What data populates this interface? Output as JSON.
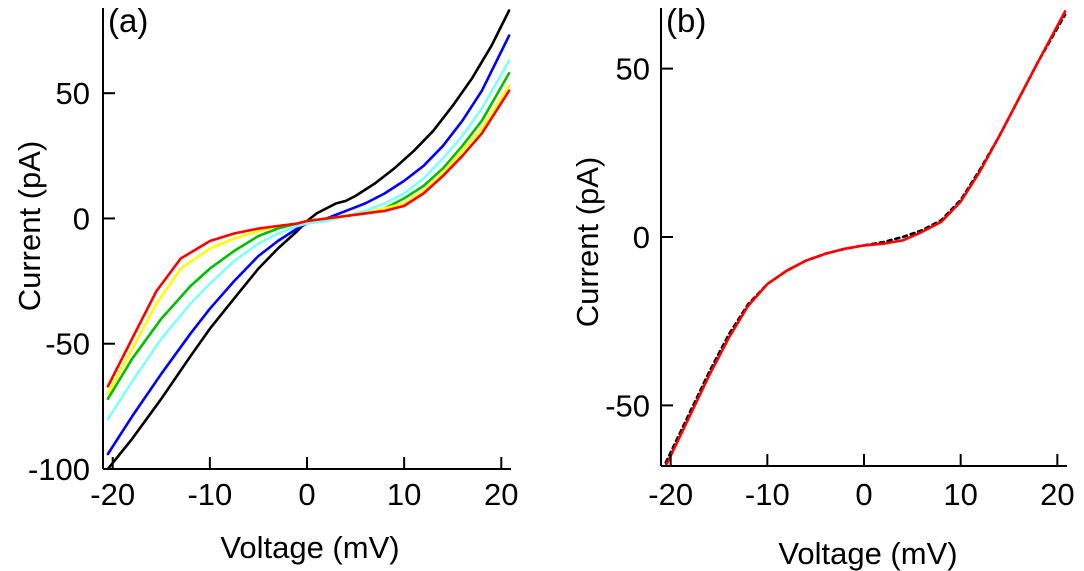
{
  "chart_data": [
    {
      "type": "line",
      "panel_label": "(a)",
      "xlabel": "Voltage (mV)",
      "ylabel": "Current (pA)",
      "xlim": [
        -21,
        21
      ],
      "ylim": [
        -100,
        84
      ],
      "xticks": [
        -20,
        -10,
        0,
        10,
        20
      ],
      "xtick_labels": [
        "-20",
        "-10",
        "0",
        "10",
        "20"
      ],
      "yticks": [
        -100,
        -50,
        0,
        50
      ],
      "ytick_labels": [
        "-100",
        "-50",
        "0",
        "50"
      ],
      "grid": false,
      "legend": "none",
      "series": [
        {
          "color": "#000000",
          "x": [
            -20.5,
            -18,
            -15,
            -12,
            -10,
            -7.5,
            -5,
            -3,
            -1,
            0,
            1,
            2,
            3,
            4,
            5,
            7,
            9,
            11,
            13,
            15,
            17,
            19,
            20.8
          ],
          "y": [
            -100,
            -88,
            -72,
            -55,
            -44,
            -32,
            -20,
            -12,
            -5,
            -1,
            2,
            4,
            6,
            7,
            9,
            14,
            20,
            27,
            35,
            45,
            56,
            69,
            83
          ]
        },
        {
          "color": "#0000ff",
          "x": [
            -20.5,
            -18,
            -15,
            -12,
            -10,
            -7.5,
            -5,
            -3,
            -1,
            0,
            2,
            4,
            6,
            8,
            10,
            12,
            14,
            16,
            18,
            20.8
          ],
          "y": [
            -94,
            -79,
            -62,
            -46,
            -36,
            -25,
            -15,
            -9,
            -4,
            -2,
            0,
            3,
            6,
            10,
            15,
            21,
            29,
            39,
            51,
            73
          ]
        },
        {
          "color": "#7fffff",
          "x": [
            -20.5,
            -18,
            -15,
            -12,
            -10,
            -7.5,
            -5,
            -3,
            -1,
            0,
            2,
            4,
            6,
            8,
            10,
            12,
            14,
            16,
            18,
            20.8
          ],
          "y": [
            -80,
            -65,
            -48,
            -34,
            -26,
            -17,
            -10,
            -6,
            -3,
            -2,
            -1,
            1,
            3,
            6,
            10,
            16,
            24,
            33,
            44,
            63
          ]
        },
        {
          "color": "#00c000",
          "x": [
            -20.5,
            -18,
            -15,
            -12,
            -10,
            -7.5,
            -5,
            -3,
            -1,
            0,
            2,
            4,
            6,
            8,
            10,
            12,
            14,
            16,
            18,
            20.8
          ],
          "y": [
            -72,
            -56,
            -40,
            -27,
            -20,
            -13,
            -7,
            -4,
            -2,
            -1,
            0,
            1,
            2,
            4,
            8,
            13,
            20,
            29,
            39,
            58
          ]
        },
        {
          "color": "#ffff00",
          "x": [
            -20.5,
            -18,
            -15.5,
            -13,
            -10,
            -7.5,
            -5,
            -3,
            -1,
            0,
            2,
            4,
            6,
            8,
            10,
            12,
            14,
            16,
            18,
            20.8
          ],
          "y": [
            -70,
            -52,
            -34,
            -20,
            -12,
            -8,
            -5,
            -3,
            -2,
            -1,
            0,
            1,
            2,
            4,
            6,
            11,
            18,
            27,
            36,
            53
          ]
        },
        {
          "color": "#ff0000",
          "x": [
            -20.5,
            -18,
            -15.5,
            -13,
            -10,
            -7.5,
            -5,
            -3,
            -1,
            0,
            2,
            4,
            6,
            8,
            10,
            12,
            14,
            16,
            18,
            20.8
          ],
          "y": [
            -67,
            -48,
            -29,
            -16,
            -9,
            -6,
            -4,
            -3,
            -2,
            -1,
            0,
            1,
            2,
            3,
            5,
            10,
            17,
            25,
            34,
            51
          ]
        }
      ]
    },
    {
      "type": "line",
      "panel_label": "(b)",
      "xlabel": "Voltage (mV)",
      "ylabel": "Current (pA)",
      "xlim": [
        -21,
        21
      ],
      "ylim": [
        -68,
        68
      ],
      "xticks": [
        -20,
        -10,
        0,
        10,
        20
      ],
      "xtick_labels": [
        "-20",
        "-10",
        "0",
        "10",
        "20"
      ],
      "yticks": [
        -50,
        0,
        50
      ],
      "ytick_labels": [
        "-50",
        "0",
        "50"
      ],
      "grid": false,
      "legend": "none",
      "series": [
        {
          "color": "#000000",
          "dashed": true,
          "x": [
            -20.5,
            -18,
            -16,
            -14,
            -12,
            -10,
            -8,
            -6,
            -4,
            -2,
            0,
            2,
            4,
            6,
            8,
            10,
            12,
            14,
            16,
            18,
            20.8
          ],
          "y": [
            -67,
            -52,
            -40,
            -29,
            -20,
            -14,
            -10,
            -7,
            -5,
            -3.5,
            -2.5,
            -1.5,
            0,
            2,
            5,
            11,
            20,
            30,
            41,
            52,
            66
          ]
        },
        {
          "color": "#ff0000",
          "dashed": false,
          "x": [
            -20.5,
            -18,
            -16,
            -14,
            -12,
            -10,
            -8,
            -6,
            -4,
            -2,
            0,
            2,
            4,
            6,
            8,
            10,
            12,
            14,
            16,
            18,
            20.8
          ],
          "y": [
            -68,
            -53,
            -41,
            -30,
            -20.5,
            -14,
            -10,
            -7,
            -5,
            -3.5,
            -2.5,
            -2,
            -1,
            1.5,
            4.5,
            10.5,
            19.5,
            30,
            41,
            52,
            67
          ]
        }
      ]
    }
  ]
}
